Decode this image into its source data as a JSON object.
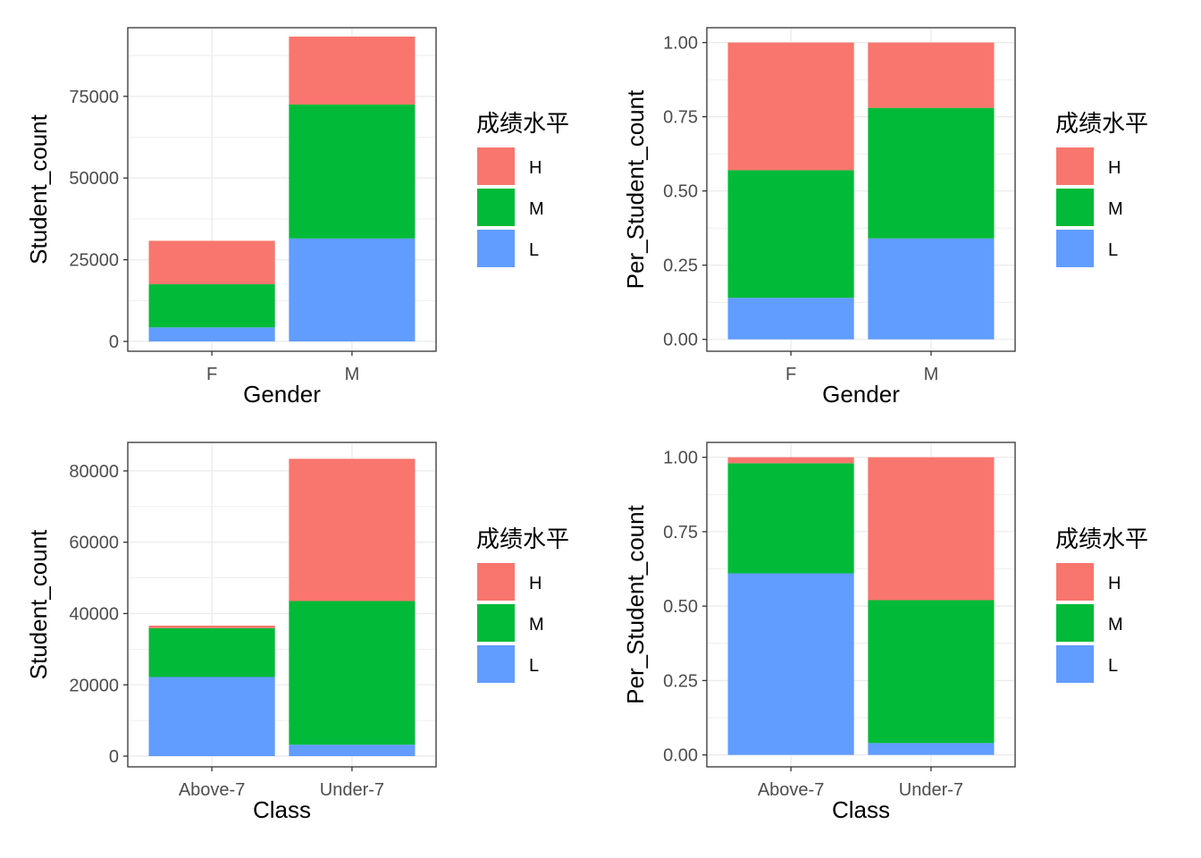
{
  "legend": {
    "title": "成绩水平",
    "keys": [
      "H",
      "M",
      "L"
    ]
  },
  "colors": {
    "H": "#F8766D",
    "M": "#00BA38",
    "L": "#619CFF",
    "grid": "#EBEBEB",
    "frame": "#333333",
    "tick_text": "#4D4D4D"
  },
  "chart_data": [
    {
      "type": "bar",
      "stacked": true,
      "xlabel": "Gender",
      "ylabel": "Student_count",
      "categories": [
        "F",
        "M"
      ],
      "ylim": [
        -3000,
        96000
      ],
      "yticks": [
        0,
        25000,
        50000,
        75000
      ],
      "ytick_labels": [
        "0",
        "25000",
        "50000",
        "75000"
      ],
      "series": [
        {
          "name": "L",
          "values": [
            4300,
            31500
          ]
        },
        {
          "name": "M",
          "values": [
            13200,
            41000
          ]
        },
        {
          "name": "H",
          "values": [
            13300,
            20800
          ]
        }
      ],
      "legend_position": "right",
      "grid": true
    },
    {
      "type": "bar",
      "stacked": true,
      "xlabel": "Gender",
      "ylabel": "Per_Student_count",
      "categories": [
        "F",
        "M"
      ],
      "ylim": [
        -0.04,
        1.05
      ],
      "yticks": [
        0,
        0.25,
        0.5,
        0.75,
        1
      ],
      "ytick_labels": [
        "0.00",
        "0.25",
        "0.50",
        "0.75",
        "1.00"
      ],
      "series": [
        {
          "name": "L",
          "values": [
            0.14,
            0.34
          ]
        },
        {
          "name": "M",
          "values": [
            0.43,
            0.44
          ]
        },
        {
          "name": "H",
          "values": [
            0.43,
            0.22
          ]
        }
      ],
      "legend_position": "right",
      "grid": true
    },
    {
      "type": "bar",
      "stacked": true,
      "xlabel": "Class",
      "ylabel": "Student_count",
      "categories": [
        "Above-7",
        "Under-7"
      ],
      "ylim": [
        -3000,
        88000
      ],
      "yticks": [
        0,
        20000,
        40000,
        60000,
        80000
      ],
      "ytick_labels": [
        "0",
        "20000",
        "40000",
        "60000",
        "80000"
      ],
      "series": [
        {
          "name": "L",
          "values": [
            22200,
            3200
          ]
        },
        {
          "name": "M",
          "values": [
            13700,
            40300
          ]
        },
        {
          "name": "H",
          "values": [
            700,
            39900
          ]
        }
      ],
      "legend_position": "right",
      "grid": true
    },
    {
      "type": "bar",
      "stacked": true,
      "xlabel": "Class",
      "ylabel": "Per_Student_count",
      "categories": [
        "Above-7",
        "Under-7"
      ],
      "ylim": [
        -0.04,
        1.05
      ],
      "yticks": [
        0,
        0.25,
        0.5,
        0.75,
        1
      ],
      "ytick_labels": [
        "0.00",
        "0.25",
        "0.50",
        "0.75",
        "1.00"
      ],
      "series": [
        {
          "name": "L",
          "values": [
            0.61,
            0.04
          ]
        },
        {
          "name": "M",
          "values": [
            0.37,
            0.48
          ]
        },
        {
          "name": "H",
          "values": [
            0.02,
            0.48
          ]
        }
      ],
      "legend_position": "right",
      "grid": true
    }
  ]
}
